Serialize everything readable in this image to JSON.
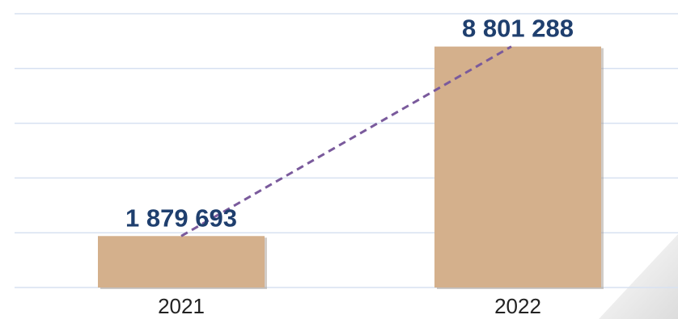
{
  "chart_data": {
    "type": "bar",
    "categories": [
      "2021",
      "2022"
    ],
    "values": [
      1879693,
      8801288
    ],
    "value_labels": [
      "1 879 693",
      "8 801 288"
    ],
    "ylim": [
      0,
      10000000
    ],
    "grid": true,
    "legend": "none",
    "trend_line": "dashed, connecting bar tops"
  },
  "colors": {
    "bar": "#d4b08c",
    "bar_shadow": "#9a8f86",
    "gridline": "#d7e1f1",
    "trend_line": "#7a5a9c",
    "data_label": "#1f3f6e",
    "tick_label": "#222222",
    "watermark": "#e6e6e6"
  }
}
